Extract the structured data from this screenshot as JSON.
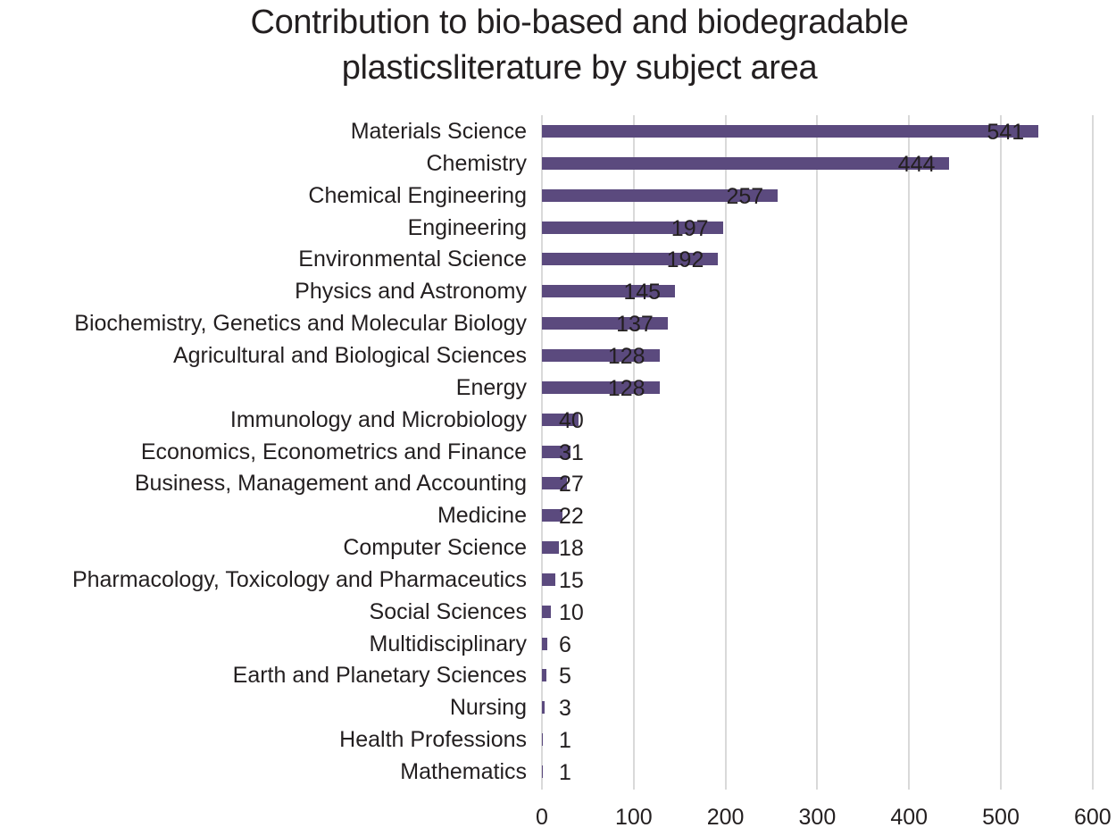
{
  "chart_data": {
    "type": "bar",
    "orientation": "horizontal",
    "title": "Contribution to bio-based and biodegradable plasticsliterature by subject area",
    "title_lines": [
      "Contribution to bio-based and biodegradable",
      "plasticsliterature by subject area"
    ],
    "xlabel": "",
    "ylabel": "",
    "xlim": [
      0,
      600
    ],
    "xticks": [
      0,
      100,
      200,
      300,
      400,
      500,
      600
    ],
    "grid": true,
    "legend": null,
    "bar_color": "#5b4a7e",
    "categories": [
      "Materials Science",
      "Chemistry",
      "Chemical Engineering",
      "Engineering",
      "Environmental Science",
      "Physics and Astronomy",
      "Biochemistry, Genetics and Molecular Biology",
      "Agricultural and Biological Sciences",
      "Energy",
      "Immunology and Microbiology",
      "Economics, Econometrics and Finance",
      "Business, Management and Accounting",
      "Medicine",
      "Computer Science",
      "Pharmacology, Toxicology and Pharmaceutics",
      "Social Sciences",
      "Multidisciplinary",
      "Earth and Planetary Sciences",
      "Nursing",
      "Health Professions",
      "Mathematics"
    ],
    "values": [
      541,
      444,
      257,
      197,
      192,
      145,
      137,
      128,
      128,
      40,
      31,
      27,
      22,
      18,
      15,
      10,
      6,
      5,
      3,
      1,
      1
    ],
    "data_labels": [
      "541",
      "444",
      "257",
      "197",
      "192",
      "145",
      "137",
      "128",
      "128",
      "40",
      "31",
      "27",
      "22",
      "18",
      "15",
      "10",
      "6",
      "5",
      "3",
      "1",
      "1"
    ]
  }
}
